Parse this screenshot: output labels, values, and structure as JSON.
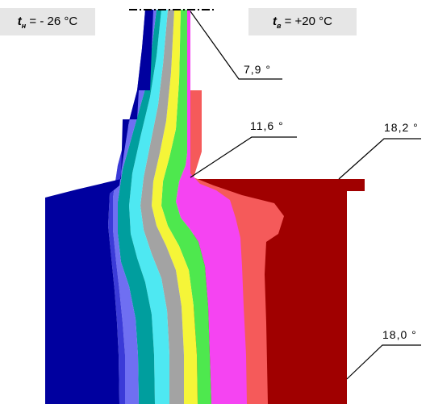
{
  "labels": {
    "outside": {
      "symbol": "t",
      "subscript": "н",
      "text": "= - 26 °C"
    },
    "inside": {
      "symbol": "t",
      "subscript": "в",
      "text": "= +20 °C"
    }
  },
  "annotations": {
    "top": "7,9 °",
    "corner": "11,6 °",
    "ledge": "18,2 °",
    "bottom": "18,0 °"
  },
  "colors": {
    "zone1": "#00009f",
    "zone2": "#3b3bd8",
    "zone3": "#6f6ff2",
    "zone4": "#009e9e",
    "zone5": "#4ee8f2",
    "zone6": "#a3a3a3",
    "zone7": "#f5f538",
    "zone8": "#4ee84e",
    "zone9": "#f544f2",
    "zone10": "#f55a5a",
    "zone11": "#a00000"
  }
}
